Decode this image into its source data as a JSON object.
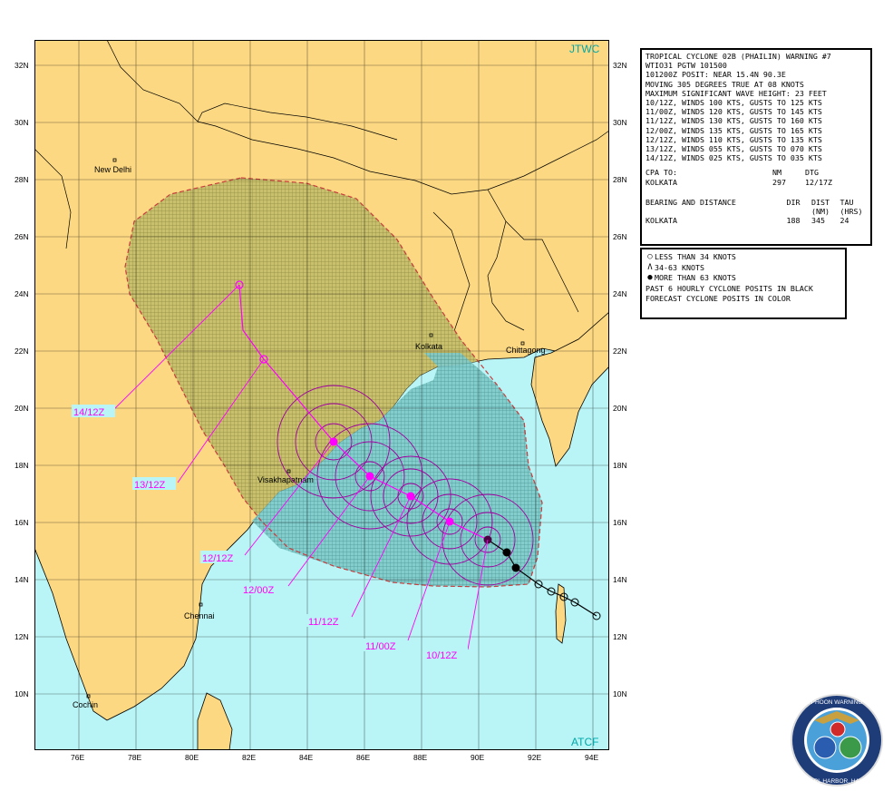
{
  "map": {
    "agency_top_right": "JTWC",
    "agency_bottom_right": "ATCF",
    "lat_labels": [
      "32N",
      "30N",
      "28N",
      "26N",
      "24N",
      "22N",
      "20N",
      "18N",
      "16N",
      "14N",
      "12N",
      "10N"
    ],
    "lon_labels": [
      "76E",
      "78E",
      "80E",
      "82E",
      "84E",
      "86E",
      "88E",
      "90E",
      "92E",
      "94E"
    ],
    "cities": {
      "new_delhi": "New Delhi",
      "kolkata": "Kolkata",
      "chittagong": "Chittagong",
      "visakhapatnam": "Visakhapatnam",
      "chennai": "Chennai",
      "cochin": "Cochin"
    },
    "forecast_labels": {
      "t1": "10/12Z",
      "t2": "11/00Z",
      "t3": "11/12Z",
      "t4": "12/00Z",
      "t5": "12/12Z",
      "t6": "13/12Z",
      "t7": "14/12Z"
    },
    "colors": {
      "land": "#fcd882",
      "sea": "#b9f5f7",
      "forecast_track": "#ff00ff",
      "danger_area_edge": "#c83c3c",
      "grid": "#000000"
    }
  },
  "warning": {
    "title": "TROPICAL CYCLONE 02B (PHAILIN) WARNING #7",
    "header": "WTIO31 PGTW 101500",
    "posit": "101200Z POSIT: NEAR 15.4N 90.3E",
    "moving": "MOVING 305 DEGREES TRUE AT 08 KNOTS",
    "wave": "MAXIMUM SIGNIFICANT WAVE HEIGHT: 23 FEET",
    "forecasts": [
      "10/12Z, WINDS 100 KTS, GUSTS TO 125 KTS",
      "11/00Z, WINDS 120 KTS, GUSTS TO 145 KTS",
      "11/12Z, WINDS 130 KTS, GUSTS TO 160 KTS",
      "12/00Z, WINDS 135 KTS, GUSTS TO 165 KTS",
      "12/12Z, WINDS 110 KTS, GUSTS TO 135 KTS",
      "13/12Z, WINDS 055 KTS, GUSTS TO 070 KTS",
      "14/12Z, WINDS 025 KTS, GUSTS TO 035 KTS"
    ],
    "cpa": {
      "label": "CPA TO:",
      "nm_header": "NM",
      "dtg_header": "DTG",
      "place": "KOLKATA",
      "nm": "297",
      "dtg": "12/17Z"
    },
    "bearing": {
      "label": "BEARING AND DISTANCE",
      "dir_header": "DIR",
      "dist_header": "DIST",
      "dist_unit": "(NM)",
      "tau_header": "TAU",
      "tau_unit": "(HRS)",
      "place": "KOLKATA",
      "dir": "188",
      "dist": "345",
      "tau": "24"
    }
  },
  "legend": {
    "items": [
      {
        "symbol": "○",
        "text": "LESS THAN 34 KNOTS"
      },
      {
        "symbol": "Ʌ",
        "text": "34-63 KNOTS"
      },
      {
        "symbol": "●",
        "text": "MORE THAN 63 KNOTS"
      }
    ],
    "past_note": "PAST 6 HOURLY CYCLONE POSITS IN BLACK",
    "forecast_note": "FORECAST CYCLONE POSITS IN COLOR"
  },
  "seal": {
    "ring_text": "USAF ★ JOINT TYPHOON WARNING CENTER ★ USN",
    "bottom_text": "PEARL HARBOR, HAWAII"
  }
}
